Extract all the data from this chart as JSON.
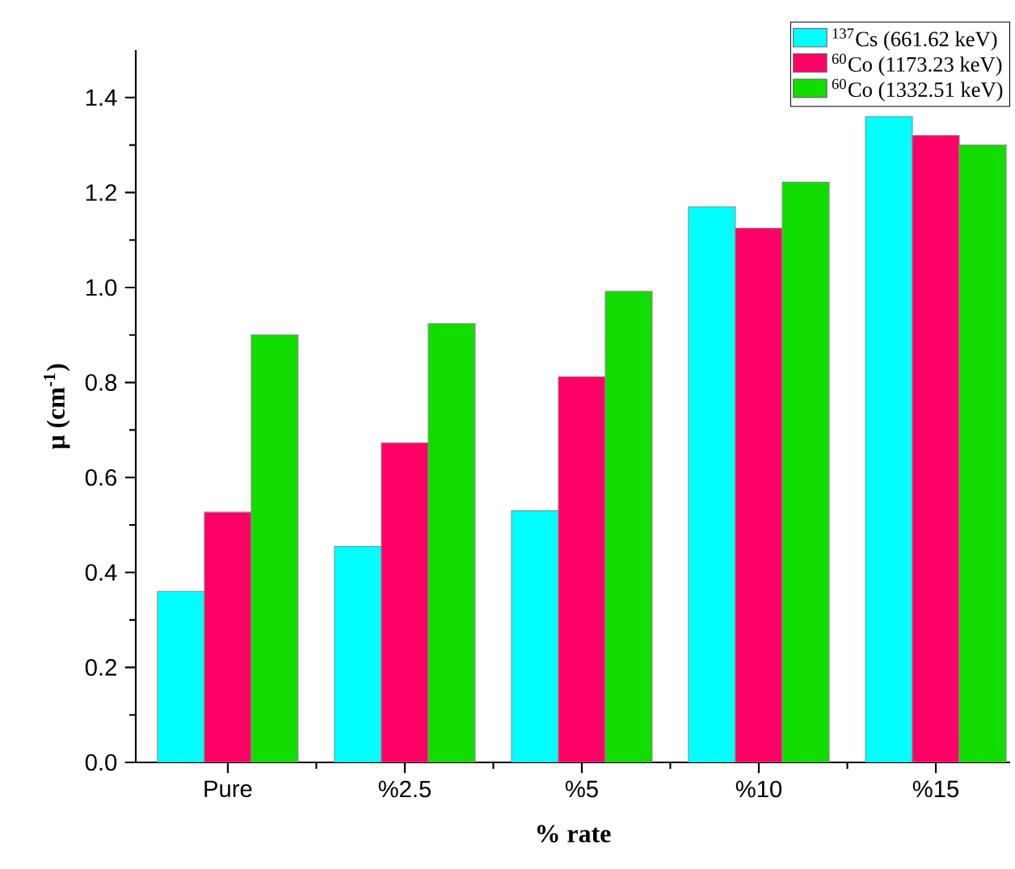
{
  "chart_data": {
    "type": "bar",
    "xlabel": "**% rate**",
    "ylabel": "**μ (cm$^{-1}$)**",
    "categories": [
      "Pure",
      "%2.5",
      "%5",
      "%10",
      "%15"
    ],
    "series": [
      {
        "name": "$^{137}$Cs (661.62 keV)",
        "color": "#00ffff",
        "values": [
          0.36,
          0.455,
          0.53,
          1.17,
          1.36
        ]
      },
      {
        "name": "$^{60}$Co (1173.23 keV)",
        "color": "#ff0066",
        "values": [
          0.527,
          0.673,
          0.812,
          1.125,
          1.32
        ]
      },
      {
        "name": "$^{60}$Co (1332.51 keV)",
        "color": "#11dd00",
        "values": [
          0.9,
          0.924,
          0.992,
          1.222,
          1.3
        ]
      }
    ],
    "ylim": [
      0,
      1.5
    ],
    "yticks": [
      {
        "value": 0,
        "label": "0.0"
      },
      0.2,
      0.4,
      0.6,
      0.8,
      {
        "value": 1,
        "label": "1.0"
      },
      1.2,
      1.4
    ],
    "legend": "top right",
    "grid": false
  }
}
